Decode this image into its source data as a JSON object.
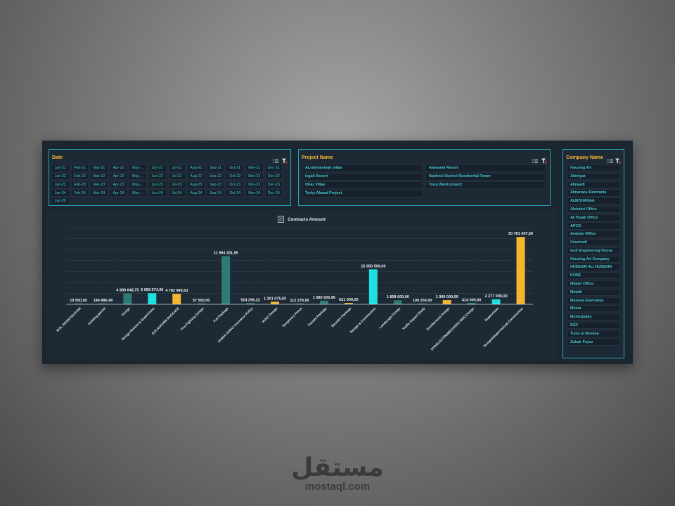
{
  "date_slicer": {
    "title": "Date",
    "items": [
      "Jan-21",
      "Feb-21",
      "Mar-21",
      "Apr-21",
      "May-...",
      "Jun-21",
      "Jul-21",
      "Aug-21",
      "Sep-21",
      "Oct-21",
      "Nov-21",
      "Dec-21",
      "Jan-22",
      "Feb-22",
      "Mar-22",
      "Apr-22",
      "May-...",
      "Jun-22",
      "Jul-22",
      "Aug-22",
      "Sep-22",
      "Oct-22",
      "Nov-22",
      "Dec-22",
      "Jan-23",
      "Feb-23",
      "Mar-23",
      "Apr-23",
      "May-...",
      "Jun-23",
      "Jul-23",
      "Aug-23",
      "Sep-23",
      "Oct-23",
      "Nov-23",
      "Dec-23",
      "Jan-24",
      "Feb-24",
      "Mar-24",
      "Apr-24",
      "May-...",
      "Jun-24",
      "Jul-24",
      "Aug-24",
      "Sep-24",
      "Oct-24",
      "Nov-24",
      "Dec-24",
      "Jan-25"
    ]
  },
  "project_slicer": {
    "title": "Project Name",
    "items": [
      "ALrahmaniyah villas",
      "Alwaseel Resort",
      "Izgah Resort",
      "Nakheel District Residential Tower",
      "Okaz Villas",
      "Touq Ward project",
      "Turky Alawal Project"
    ]
  },
  "company_slicer": {
    "title": "Company Name",
    "items": [
      "Housing Art",
      "Alimtyaz",
      "Almaadi",
      "Almanara Alomrania",
      "ALMOHANAA",
      "Alshahri Office",
      "Al-Thyab Office",
      "APCO",
      "Arabian Office",
      "Cracknell",
      "Gulf Engineering House",
      "Housing Art Company",
      "HUSSAIN ALI HUSSAIN",
      "KONE",
      "Makan Office",
      "Malath",
      "Masarat Alomrania",
      "Mimar",
      "Municipality",
      "RGF",
      "Turky al Numian",
      "Zuhair Fayez"
    ]
  },
  "chart_data": {
    "type": "bar",
    "title": "Contracts Amount",
    "categories": [
      "SOIL INVESTIGATION",
      "building permit",
      "Design",
      "Design Review & Supervision",
      "EXCAVATION PACKAGE",
      "Fire Fighting Design",
      "Full Package",
      "Hidden Defect Insurance Policy",
      "HVAC Design",
      "Temporary Fence",
      "Facade Package",
      "Elevator Package",
      "Design & Construction",
      "Landscape Design",
      "Traffic Impact Study",
      "Architectural Design",
      "STR/ELECTROMECH/SSC BOQ Design",
      "Supervision",
      "Design&Supervision& Construction"
    ],
    "values": [
      19550,
      184886.48,
      4989648.75,
      5058574,
      4782949.53,
      57500,
      21993281.95,
      524296.22,
      1201075.93,
      112279.56,
      1680925.96,
      621000,
      15950500,
      1858600,
      109250,
      1909000,
      414000,
      2277000,
      30761407.5
    ],
    "labels": [
      "19 550,00",
      "184 886,48",
      "4 989 648,75",
      "5 058 574,00",
      "4 782 949,53",
      "57 500,00",
      "21 993 281,95",
      "524 296,22",
      "1 201 075,93",
      "112 279,56",
      "1 680 925,96",
      "621 000,00",
      "15 950 500,00",
      "1 858 600,00",
      "109 250,00",
      "1 909 000,00",
      "414 000,00",
      "2 277 000,00",
      "30 761 407,50"
    ],
    "colors": [
      "#2f7a74",
      "#2f7a74",
      "#2f7a74",
      "#1fe0e0",
      "#f5b52e",
      "#2f7a74",
      "#2f7a74",
      "#2f7a74",
      "#f5b52e",
      "#2f7a74",
      "#2f7a74",
      "#f5b52e",
      "#1fe0e0",
      "#2f7a74",
      "#2f7a74",
      "#f5b52e",
      "#1fe0e0",
      "#1fe0e0",
      "#f5b52e"
    ],
    "ylim": [
      0,
      35000000
    ],
    "grid": true,
    "legend": "none"
  },
  "watermark": {
    "arabic": "مستقل",
    "latin": "mostaql.com"
  }
}
